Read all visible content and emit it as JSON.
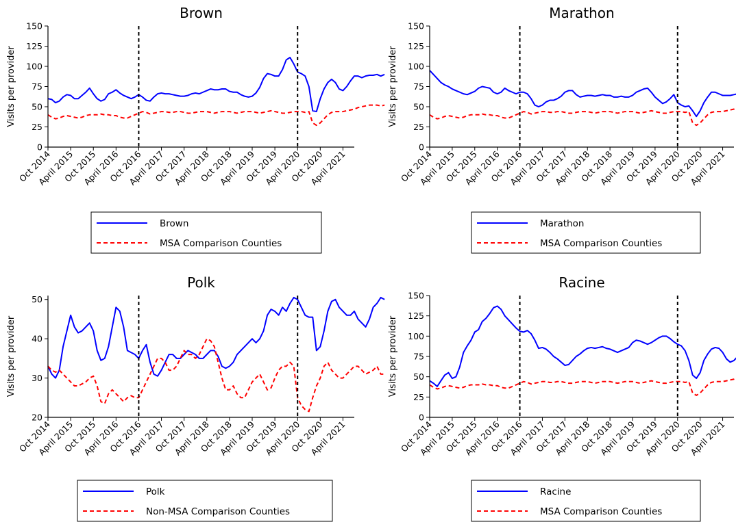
{
  "chart_data": [
    {
      "type": "line",
      "title": "Brown",
      "xlabel": "",
      "ylabel": "Visits per provider",
      "ylim": [
        0,
        150
      ],
      "yticks": [
        0,
        25,
        50,
        75,
        100,
        125,
        150
      ],
      "xlim": [
        0,
        81
      ],
      "xtick_labels": [
        "Oct 2014",
        "April 2015",
        "Oct 2015",
        "April 2016",
        "Oct 2016",
        "April 2017",
        "Oct 2017",
        "April 2018",
        "Oct 2018",
        "April 2019",
        "Oct 2019",
        "April 2020",
        "Oct 2020",
        "April 2021"
      ],
      "xtick_positions": [
        0,
        6,
        12,
        18,
        24,
        30,
        36,
        42,
        48,
        54,
        60,
        66,
        72,
        78
      ],
      "vlines": [
        24,
        66
      ],
      "legend_position": "below",
      "series": [
        {
          "name": "Brown",
          "color": "#0000ff",
          "style": "solid",
          "values": [
            60,
            59,
            55,
            57,
            62,
            65,
            64,
            60,
            60,
            64,
            68,
            73,
            66,
            60,
            57,
            59,
            66,
            68,
            71,
            67,
            64,
            62,
            60,
            62,
            65,
            62,
            58,
            57,
            62,
            66,
            67,
            66,
            66,
            65,
            64,
            63,
            63,
            64,
            66,
            67,
            66,
            68,
            70,
            72,
            71,
            71,
            72,
            72,
            69,
            68,
            68,
            65,
            63,
            62,
            63,
            67,
            74,
            85,
            91,
            90,
            88,
            88,
            96,
            108,
            111,
            103,
            93,
            91,
            88,
            75,
            45,
            44,
            60,
            72,
            80,
            84,
            80,
            72,
            70,
            75,
            82,
            88,
            88,
            86,
            88,
            89,
            89,
            90,
            88,
            90
          ]
        },
        {
          "name": "MSA Comparison Counties",
          "color": "#ff0000",
          "style": "dashed",
          "values": [
            40,
            37,
            35,
            36,
            38,
            39,
            38,
            37,
            36,
            37,
            39,
            40,
            40,
            40,
            41,
            40,
            40,
            39,
            39,
            37,
            36,
            36,
            38,
            40,
            42,
            44,
            43,
            41,
            42,
            43,
            44,
            44,
            43,
            43,
            44,
            44,
            43,
            42,
            42,
            43,
            44,
            44,
            44,
            43,
            42,
            43,
            44,
            44,
            44,
            43,
            42,
            43,
            44,
            44,
            44,
            43,
            42,
            43,
            44,
            45,
            44,
            43,
            42,
            42,
            43,
            44,
            44,
            44,
            43,
            44,
            30,
            27,
            30,
            35,
            40,
            43,
            44,
            44,
            44,
            45,
            46,
            47,
            49,
            50,
            51,
            52,
            52,
            52,
            51,
            52
          ]
        }
      ]
    },
    {
      "type": "line",
      "title": "Marathon",
      "xlabel": "",
      "ylabel": "Visits per provider",
      "ylim": [
        0,
        150
      ],
      "yticks": [
        0,
        25,
        50,
        75,
        100,
        125,
        150
      ],
      "xlim": [
        0,
        81
      ],
      "xtick_labels": [
        "Oct 2014",
        "April 2015",
        "Oct 2015",
        "April 2016",
        "Oct 2016",
        "April 2017",
        "Oct 2017",
        "April 2018",
        "Oct 2018",
        "April 2019",
        "Oct 2019",
        "April 2020",
        "Oct 2020",
        "April 2021"
      ],
      "xtick_positions": [
        0,
        6,
        12,
        18,
        24,
        30,
        36,
        42,
        48,
        54,
        60,
        66,
        72,
        78
      ],
      "vlines": [
        24,
        66
      ],
      "legend_position": "below",
      "series": [
        {
          "name": "Marathon",
          "color": "#0000ff",
          "style": "solid",
          "values": [
            95,
            90,
            85,
            80,
            77,
            75,
            72,
            70,
            68,
            66,
            65,
            67,
            69,
            73,
            75,
            74,
            73,
            68,
            66,
            68,
            73,
            70,
            68,
            66,
            68,
            68,
            66,
            60,
            52,
            50,
            52,
            56,
            58,
            58,
            60,
            63,
            68,
            70,
            70,
            65,
            62,
            63,
            64,
            64,
            63,
            64,
            65,
            64,
            64,
            62,
            62,
            63,
            62,
            62,
            64,
            68,
            70,
            72,
            73,
            68,
            62,
            58,
            54,
            56,
            60,
            65,
            55,
            52,
            50,
            51,
            45,
            38,
            45,
            55,
            62,
            68,
            68,
            66,
            64,
            64,
            64,
            65,
            66,
            68,
            70,
            70,
            70,
            71,
            71,
            70
          ]
        },
        {
          "name": "MSA Comparison Counties",
          "color": "#ff0000",
          "style": "dashed",
          "values": [
            40,
            37,
            35,
            36,
            38,
            39,
            38,
            37,
            36,
            37,
            39,
            40,
            40,
            40,
            41,
            40,
            40,
            39,
            39,
            37,
            36,
            36,
            38,
            40,
            42,
            44,
            43,
            41,
            42,
            43,
            44,
            44,
            43,
            43,
            44,
            44,
            43,
            42,
            42,
            43,
            44,
            44,
            44,
            43,
            42,
            43,
            44,
            44,
            44,
            43,
            42,
            43,
            44,
            44,
            44,
            43,
            42,
            43,
            44,
            45,
            44,
            43,
            42,
            42,
            43,
            44,
            44,
            44,
            43,
            44,
            30,
            27,
            30,
            35,
            40,
            43,
            44,
            44,
            44,
            45,
            46,
            47,
            49,
            50,
            51,
            52,
            52,
            52,
            51,
            52
          ]
        }
      ]
    },
    {
      "type": "line",
      "title": "Polk",
      "xlabel": "",
      "ylabel": "Visits per provider",
      "ylim": [
        20,
        51
      ],
      "yticks": [
        20,
        30,
        40,
        50
      ],
      "xlim": [
        0,
        81
      ],
      "xtick_labels": [
        "Oct 2014",
        "April 2015",
        "Oct 2015",
        "April 2016",
        "Oct 2016",
        "April 2017",
        "Oct 2017",
        "April 2018",
        "Oct 2018",
        "April 2019",
        "Oct 2019",
        "April 2020",
        "Oct 2020",
        "April 2021"
      ],
      "xtick_positions": [
        0,
        6,
        12,
        18,
        24,
        30,
        36,
        42,
        48,
        54,
        60,
        66,
        72,
        78
      ],
      "vlines": [
        24,
        66
      ],
      "legend_position": "below",
      "series": [
        {
          "name": "Polk",
          "color": "#0000ff",
          "style": "solid",
          "values": [
            33,
            31,
            30,
            32,
            38,
            42,
            46,
            43,
            41.5,
            42,
            43,
            44,
            42,
            37,
            34.5,
            35,
            38,
            43,
            48,
            47,
            43,
            37,
            36.5,
            36,
            35,
            37,
            38.5,
            34,
            31,
            30.5,
            32,
            34,
            36,
            36,
            35,
            35,
            36,
            37,
            36.5,
            36,
            35,
            35,
            36,
            37,
            37,
            35.5,
            33,
            32.5,
            33,
            34,
            36,
            37,
            38,
            39,
            40,
            39,
            40,
            42,
            46,
            47.5,
            47,
            46,
            48,
            47,
            49,
            50.5,
            50,
            48,
            46,
            45.5,
            45.5,
            37,
            38,
            42,
            47,
            49.5,
            50,
            48,
            47,
            46,
            46,
            47,
            45,
            44,
            43,
            45,
            48,
            49,
            50.5,
            50
          ]
        },
        {
          "name": "Non-MSA Comparison Counties",
          "color": "#ff0000",
          "style": "dashed",
          "values": [
            33,
            32,
            31.5,
            32,
            31,
            30,
            29,
            28,
            28,
            28.5,
            29,
            30,
            30.5,
            28,
            24,
            23.5,
            26,
            27,
            26,
            25,
            24,
            25,
            25.5,
            25,
            25,
            27,
            29,
            31,
            33,
            35,
            35,
            34,
            32,
            32,
            33,
            35,
            37,
            36,
            36,
            35,
            36,
            38,
            40,
            39.5,
            38,
            34,
            30,
            27,
            27,
            28,
            26,
            25,
            25,
            27,
            29,
            30,
            31,
            29,
            27,
            27.5,
            30,
            32,
            33,
            33,
            34,
            33,
            25,
            23,
            22,
            21.5,
            25,
            28,
            30,
            33,
            34,
            32,
            31,
            30,
            30,
            31,
            32,
            33,
            33,
            32,
            31,
            31.5,
            32,
            33,
            31,
            31
          ]
        }
      ]
    },
    {
      "type": "line",
      "title": "Racine",
      "xlabel": "",
      "ylabel": "Visits per provider",
      "ylim": [
        0,
        150
      ],
      "yticks": [
        0,
        25,
        50,
        75,
        100,
        125,
        150
      ],
      "xlim": [
        0,
        81
      ],
      "xtick_labels": [
        "Oct 2014",
        "April 2015",
        "Oct 2015",
        "April 2016",
        "Oct 2016",
        "April 2017",
        "Oct 2017",
        "April 2018",
        "Oct 2018",
        "April 2019",
        "Oct 2019",
        "April 2020",
        "Oct 2020",
        "April 2021"
      ],
      "xtick_positions": [
        0,
        6,
        12,
        18,
        24,
        30,
        36,
        42,
        48,
        54,
        60,
        66,
        72,
        78
      ],
      "vlines": [
        24,
        66
      ],
      "legend_position": "below",
      "series": [
        {
          "name": "Racine",
          "color": "#0000ff",
          "style": "solid",
          "values": [
            45,
            42,
            38,
            45,
            52,
            55,
            48,
            50,
            62,
            80,
            88,
            95,
            105,
            108,
            118,
            122,
            128,
            135,
            137,
            133,
            125,
            120,
            115,
            110,
            106,
            105,
            107,
            103,
            95,
            85,
            86,
            84,
            80,
            75,
            72,
            68,
            64,
            65,
            70,
            75,
            78,
            82,
            85,
            86,
            85,
            86,
            87,
            85,
            84,
            82,
            80,
            82,
            84,
            86,
            92,
            95,
            94,
            92,
            90,
            92,
            95,
            98,
            100,
            100,
            97,
            93,
            90,
            88,
            82,
            70,
            52,
            48,
            55,
            70,
            78,
            84,
            86,
            85,
            80,
            72,
            68,
            70,
            75,
            78,
            80,
            80,
            80,
            80,
            79,
            80
          ]
        },
        {
          "name": "MSA Comparison Counties",
          "color": "#ff0000",
          "style": "dashed",
          "values": [
            40,
            37,
            35,
            36,
            38,
            39,
            38,
            37,
            36,
            37,
            39,
            40,
            40,
            40,
            41,
            40,
            40,
            39,
            39,
            37,
            36,
            36,
            38,
            40,
            42,
            44,
            43,
            41,
            42,
            43,
            44,
            44,
            43,
            43,
            44,
            44,
            43,
            42,
            42,
            43,
            44,
            44,
            44,
            43,
            42,
            43,
            44,
            44,
            44,
            43,
            42,
            43,
            44,
            44,
            44,
            43,
            42,
            43,
            44,
            45,
            44,
            43,
            42,
            42,
            43,
            44,
            44,
            44,
            43,
            44,
            30,
            27,
            30,
            35,
            40,
            43,
            44,
            44,
            44,
            45,
            46,
            47,
            49,
            50,
            51,
            52,
            52,
            52,
            51,
            52
          ]
        }
      ]
    }
  ]
}
